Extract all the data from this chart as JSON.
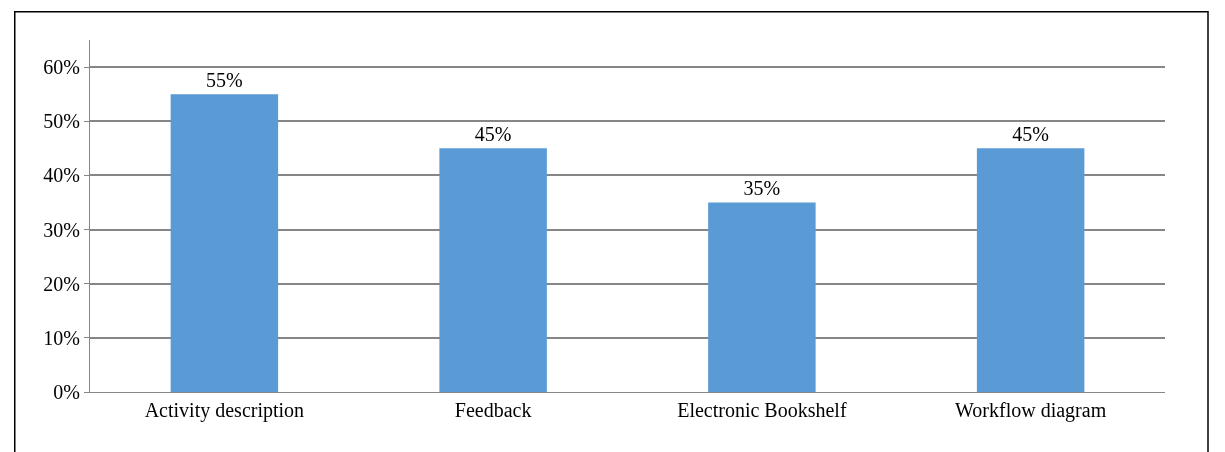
{
  "chart_data": {
    "type": "bar",
    "categories": [
      "Activity description",
      "Feedback",
      "Electronic Bookshelf",
      "Workflow diagram"
    ],
    "values": [
      55,
      45,
      35,
      45
    ],
    "value_labels": [
      "55%",
      "45%",
      "35%",
      "45%"
    ],
    "color": "#5b9bd5",
    "ylim": [
      0,
      65
    ],
    "yticks": [
      {
        "value": 0,
        "label": "0%"
      },
      {
        "value": 10,
        "label": "10%"
      },
      {
        "value": 20,
        "label": "20%"
      },
      {
        "value": 30,
        "label": "30%"
      },
      {
        "value": 40,
        "label": "40%"
      },
      {
        "value": 50,
        "label": "50%"
      },
      {
        "value": 60,
        "label": "60%"
      }
    ],
    "grid": "y"
  }
}
